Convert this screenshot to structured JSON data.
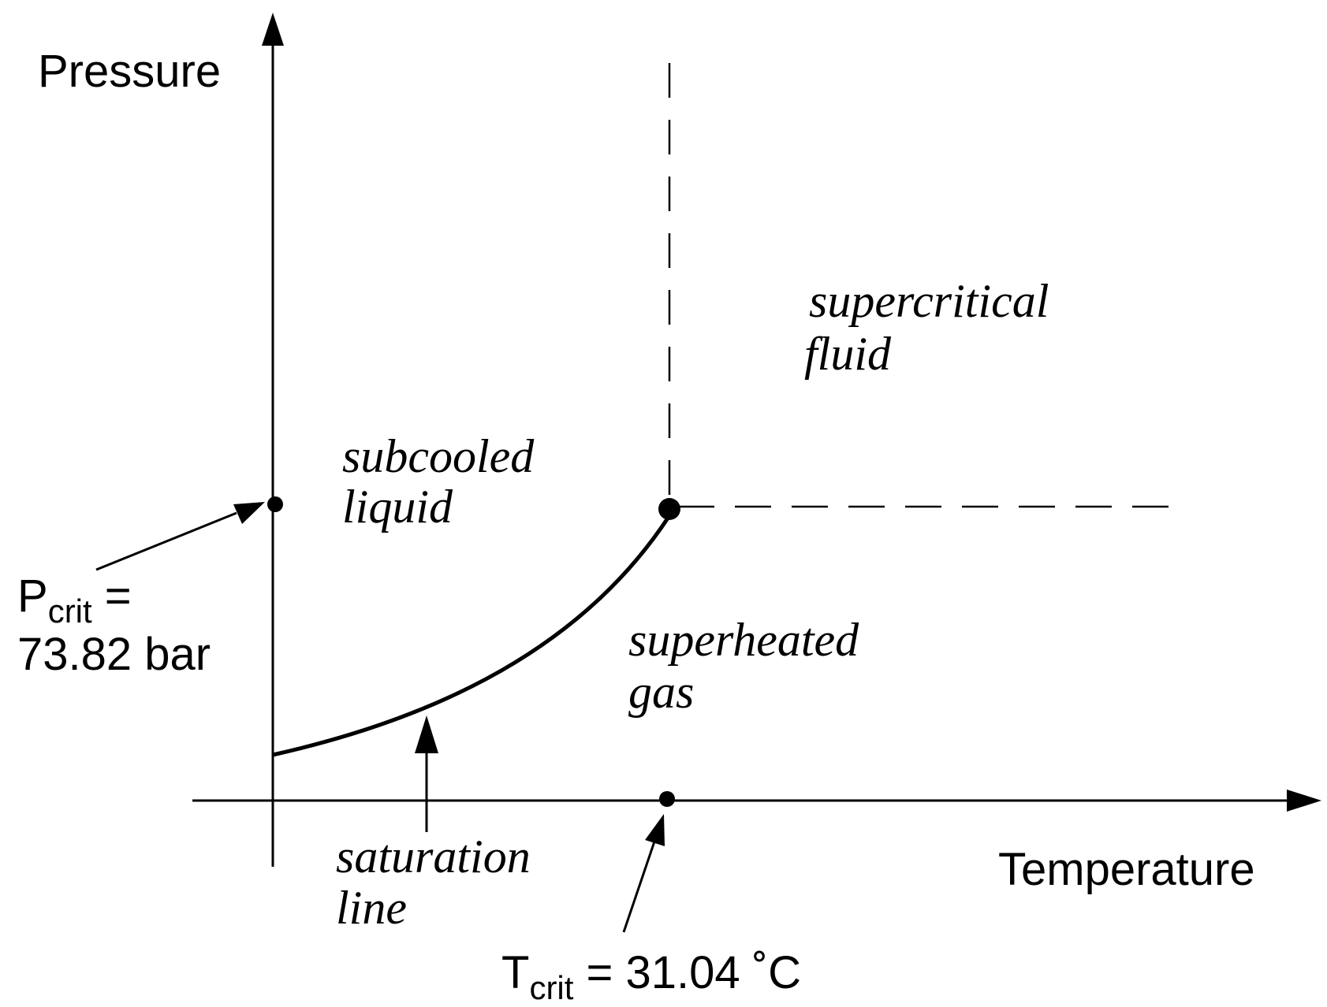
{
  "axes": {
    "y_label": "Pressure",
    "x_label": "Temperature"
  },
  "regions": {
    "supercritical_line1": "supercritical",
    "supercritical_line2": "fluid",
    "subcooled_line1": "subcooled",
    "subcooled_line2": "liquid",
    "superheated_line1": "superheated",
    "superheated_line2": "gas"
  },
  "saturation": {
    "line1": "saturation",
    "line2": "line"
  },
  "critical_pressure": {
    "symbol": "P",
    "subscript": "crit",
    "equals": " =",
    "value": "73.82 bar"
  },
  "critical_temperature": {
    "symbol": "T",
    "subscript": "crit",
    "value": " = 31.04 ˚C"
  },
  "colors": {
    "ink": "#000000",
    "background": "#ffffff"
  }
}
